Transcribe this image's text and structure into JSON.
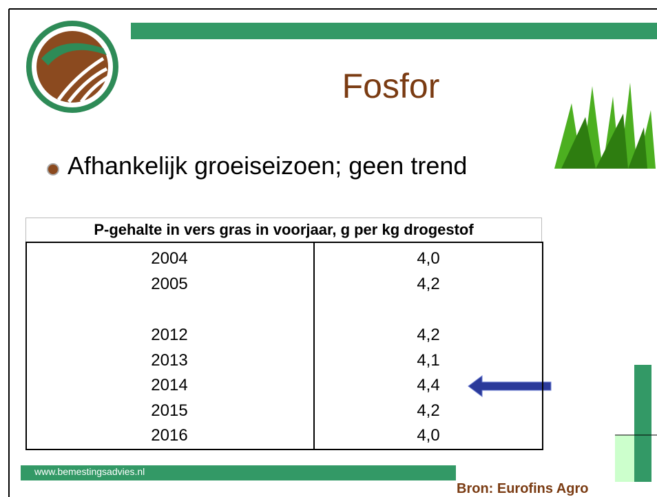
{
  "title": "Fosfor",
  "bullet": "Afhankelijk groeiseizoen; geen trend",
  "table": {
    "header": "P-gehalte in vers gras in voorjaar, g per kg drogestof",
    "groups": [
      [
        [
          "2004",
          "4,0"
        ],
        [
          "2005",
          "4,2"
        ]
      ],
      [
        [
          "2012",
          "4,2"
        ],
        [
          "2013",
          "4,1"
        ],
        [
          "2014",
          "4,4"
        ],
        [
          "2015",
          "4,2"
        ],
        [
          "2016",
          "4,0"
        ]
      ]
    ]
  },
  "footer": {
    "url": "www.bemestingsadvies.nl",
    "source": "Bron: Eurofins Agro"
  }
}
